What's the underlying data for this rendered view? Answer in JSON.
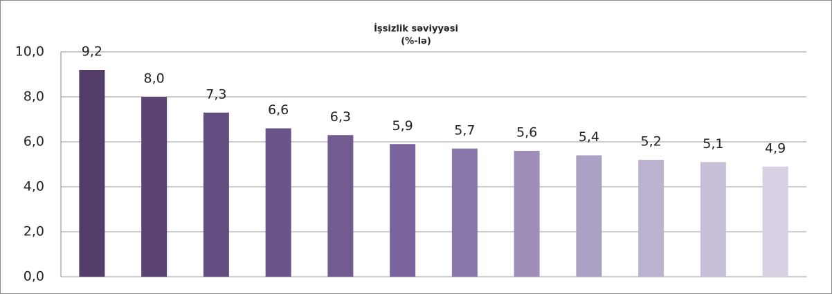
{
  "chart_data": {
    "type": "bar",
    "title": "İşsizlik səviyyəsi",
    "subtitle": "(%-lə)",
    "categories": [
      null,
      null,
      null,
      null,
      null,
      null,
      null,
      null,
      null,
      null,
      null,
      null
    ],
    "values": [
      9.2,
      8.0,
      7.3,
      6.6,
      6.3,
      5.9,
      5.7,
      5.6,
      5.4,
      5.2,
      5.1,
      4.9
    ],
    "value_labels": [
      "9,2",
      "8,0",
      "7,3",
      "6,6",
      "6,3",
      "5,9",
      "5,7",
      "5,6",
      "5,4",
      "5,2",
      "5,1",
      "4,9"
    ],
    "colors": [
      "#533d69",
      "#5b4474",
      "#634c7f",
      "#6b5489",
      "#725b91",
      "#7b639d",
      "#8a77ab",
      "#9f8fb8",
      "#ada1c5",
      "#bdb2cf",
      "#c8c0d8",
      "#d6d0e2"
    ],
    "ylim": [
      0,
      10
    ],
    "yticks": [
      {
        "value": 0,
        "label": "0,0"
      },
      {
        "value": 2,
        "label": "2,0"
      },
      {
        "value": 4,
        "label": "4,0"
      },
      {
        "value": 6,
        "label": "6,0"
      },
      {
        "value": 8,
        "label": "8,0"
      },
      {
        "value": 10,
        "label": "10,0"
      }
    ],
    "grid": true
  }
}
